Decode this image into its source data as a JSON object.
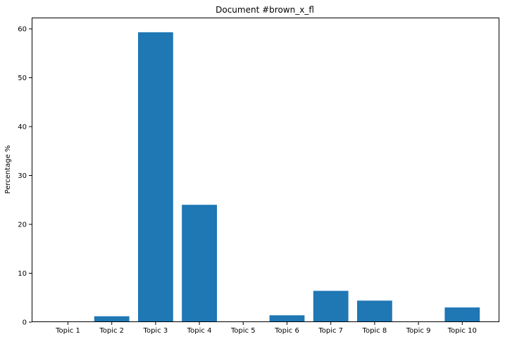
{
  "chart_data": {
    "type": "bar",
    "title": "Document #brown_x_fl",
    "xlabel": "",
    "ylabel": "Percentage %",
    "categories": [
      "Topic 1",
      "Topic 2",
      "Topic 3",
      "Topic 4",
      "Topic 5",
      "Topic 6",
      "Topic 7",
      "Topic 8",
      "Topic 9",
      "Topic 10"
    ],
    "values": [
      0,
      1.2,
      59.3,
      24.0,
      0,
      1.4,
      6.4,
      4.4,
      0,
      3.0
    ],
    "ylim": [
      0,
      62.3
    ],
    "yticks": [
      0,
      10,
      20,
      30,
      40,
      50,
      60
    ],
    "grid": false,
    "bar_color": "#1f77b4"
  }
}
